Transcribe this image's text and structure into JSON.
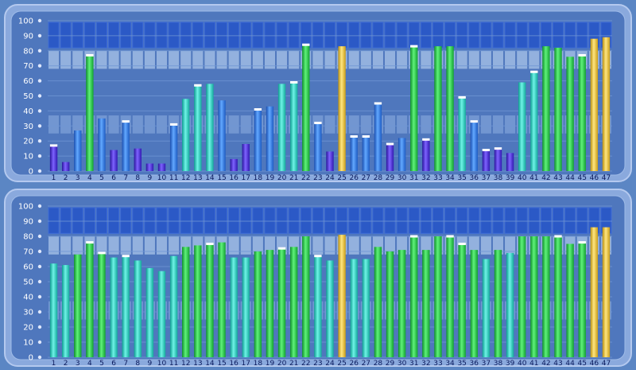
{
  "colors": {
    "background": "#5b86c4",
    "frame": "#8aa9dd",
    "frame_light": "#b4c9ef",
    "plot_bg": "#4f77bd",
    "top_band": "#2b59c6",
    "top_band_light": "#3d6bd8",
    "cell_light": "#a9c4ea",
    "cell_mid": "#8fb0e2",
    "gridline": "#6f95d4",
    "green": "#2bd24a",
    "cyan": "#27d6c6",
    "blue": "#2f7fe0",
    "purple": "#4b2ee0",
    "yellow": "#f0c93a",
    "text": "#0a1a5c"
  },
  "chart_data": [
    {
      "type": "bar",
      "panel": "top",
      "ylim": [
        0,
        100
      ],
      "yticks": [
        "0",
        "10",
        "20",
        "30",
        "40",
        "50",
        "60",
        "70",
        "80",
        "90",
        "100"
      ],
      "categories": [
        "1",
        "2",
        "3",
        "4",
        "5",
        "6",
        "7",
        "8",
        "9",
        "10",
        "11",
        "12",
        "13",
        "14",
        "15",
        "16",
        "17",
        "18",
        "19",
        "20",
        "21",
        "22",
        "23",
        "24",
        "25",
        "26",
        "27",
        "28",
        "29",
        "30",
        "31",
        "32",
        "33",
        "34",
        "35",
        "36",
        "37",
        "38",
        "39",
        "40",
        "41",
        "42",
        "43",
        "44",
        "45",
        "46",
        "47"
      ],
      "values": [
        17,
        6,
        27,
        77,
        35,
        14,
        33,
        15,
        5,
        5,
        31,
        48,
        57,
        58,
        47,
        8,
        18,
        41,
        43,
        58,
        59,
        84,
        32,
        13,
        83,
        23,
        23,
        45,
        18,
        22,
        83,
        21,
        83,
        83,
        49,
        33,
        14,
        15,
        12,
        59,
        66,
        83,
        82,
        76,
        77,
        88,
        89
      ],
      "colors": [
        "purple",
        "purple",
        "blue",
        "green",
        "blue",
        "purple",
        "blue",
        "purple",
        "purple",
        "purple",
        "blue",
        "cyan",
        "cyan",
        "cyan",
        "blue",
        "purple",
        "purple",
        "blue",
        "blue",
        "cyan",
        "cyan",
        "green",
        "blue",
        "purple",
        "yellow",
        "blue",
        "blue",
        "blue",
        "purple",
        "blue",
        "green",
        "purple",
        "green",
        "green",
        "cyan",
        "blue",
        "purple",
        "purple",
        "purple",
        "cyan",
        "cyan",
        "green",
        "green",
        "green",
        "green",
        "yellow",
        "yellow"
      ],
      "caps": [
        true,
        false,
        false,
        true,
        false,
        false,
        true,
        false,
        false,
        false,
        true,
        false,
        true,
        false,
        false,
        false,
        false,
        true,
        false,
        false,
        true,
        true,
        true,
        false,
        false,
        true,
        true,
        true,
        true,
        false,
        true,
        true,
        false,
        false,
        true,
        true,
        true,
        true,
        false,
        false,
        true,
        false,
        false,
        false,
        true,
        false,
        false
      ]
    },
    {
      "type": "bar",
      "panel": "bottom",
      "ylim": [
        0,
        100
      ],
      "yticks": [
        "0",
        "10",
        "20",
        "30",
        "40",
        "50",
        "60",
        "70",
        "80",
        "90",
        "100"
      ],
      "categories": [
        "1",
        "2",
        "3",
        "4",
        "5",
        "6",
        "7",
        "8",
        "9",
        "10",
        "11",
        "12",
        "13",
        "14",
        "15",
        "16",
        "17",
        "18",
        "19",
        "20",
        "21",
        "22",
        "23",
        "24",
        "25",
        "26",
        "27",
        "28",
        "29",
        "30",
        "31",
        "32",
        "33",
        "34",
        "35",
        "36",
        "37",
        "38",
        "39",
        "40",
        "41",
        "42",
        "43",
        "44",
        "45",
        "46",
        "47"
      ],
      "values": [
        62,
        61,
        68,
        76,
        69,
        66,
        67,
        64,
        59,
        57,
        67,
        73,
        74,
        75,
        76,
        66,
        66,
        70,
        71,
        72,
        73,
        80,
        67,
        64,
        81,
        65,
        65,
        73,
        70,
        71,
        80,
        71,
        80,
        80,
        75,
        71,
        65,
        71,
        69,
        80,
        80,
        80,
        80,
        75,
        76,
        86,
        86
      ],
      "colors": [
        "cyan",
        "cyan",
        "green",
        "green",
        "green",
        "cyan",
        "cyan",
        "cyan",
        "cyan",
        "cyan",
        "cyan",
        "green",
        "green",
        "green",
        "green",
        "cyan",
        "cyan",
        "green",
        "green",
        "green",
        "green",
        "green",
        "cyan",
        "cyan",
        "yellow",
        "cyan",
        "cyan",
        "green",
        "green",
        "green",
        "green",
        "green",
        "green",
        "green",
        "green",
        "green",
        "cyan",
        "green",
        "cyan",
        "green",
        "green",
        "green",
        "green",
        "green",
        "green",
        "yellow",
        "yellow"
      ],
      "caps": [
        false,
        false,
        false,
        true,
        true,
        false,
        true,
        false,
        false,
        false,
        false,
        false,
        false,
        true,
        false,
        false,
        false,
        false,
        false,
        true,
        false,
        false,
        true,
        false,
        false,
        false,
        false,
        false,
        false,
        false,
        true,
        false,
        false,
        true,
        true,
        false,
        false,
        false,
        false,
        false,
        false,
        false,
        true,
        false,
        true,
        false,
        false
      ]
    }
  ]
}
